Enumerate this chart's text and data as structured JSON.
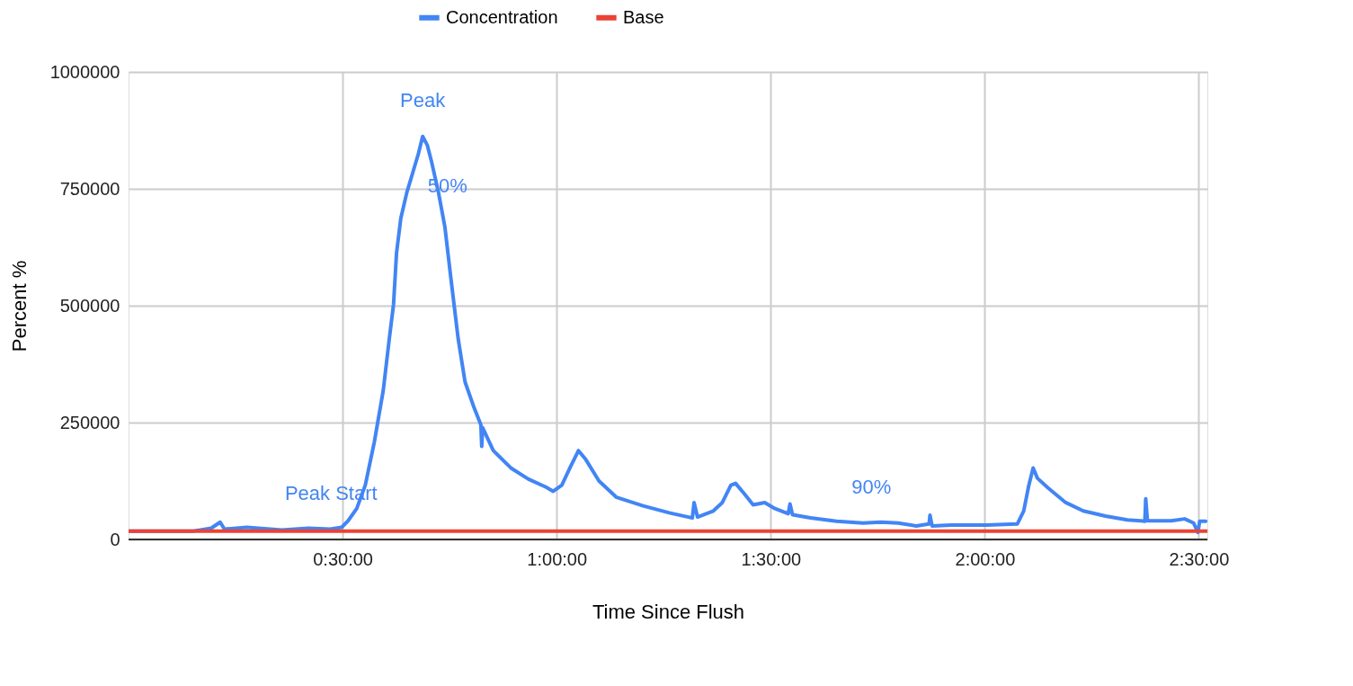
{
  "chart_data": {
    "type": "line",
    "xlabel": "Time Since Flush",
    "ylabel": "Percent %",
    "xlim": [
      0,
      2.52
    ],
    "ylim": [
      0,
      1000000
    ],
    "xticks": [
      {
        "value": 0.5,
        "label": "0:30:00"
      },
      {
        "value": 1,
        "label": "1:00:00"
      },
      {
        "value": 1.5,
        "label": "1:30:00"
      },
      {
        "value": 2,
        "label": "2:00:00"
      },
      {
        "value": 2.5,
        "label": "2:30:00"
      }
    ],
    "yticks": [
      0,
      250000,
      500000,
      750000,
      1000000
    ],
    "grid": true,
    "legend": "top",
    "line_style": "solid",
    "marker": "none",
    "annotations": [
      {
        "text": "Peak Start",
        "x": 0.473,
        "y": 22000
      },
      {
        "text": "Peak",
        "x": 0.687,
        "y": 862000
      },
      {
        "text": "50%",
        "x": 0.745,
        "y": 678000
      },
      {
        "text": "90%",
        "x": 1.735,
        "y": 35000
      }
    ],
    "series": [
      {
        "name": "Concentration",
        "color": "#4285f4",
        "x": [
          0,
          0.152,
          0.193,
          0.214,
          0.224,
          0.276,
          0.358,
          0.42,
          0.471,
          0.498,
          0.512,
          0.533,
          0.553,
          0.574,
          0.595,
          0.609,
          0.619,
          0.626,
          0.636,
          0.65,
          0.665,
          0.677,
          0.687,
          0.698,
          0.708,
          0.724,
          0.739,
          0.753,
          0.77,
          0.786,
          0.807,
          0.823,
          0.825,
          0.827,
          0.852,
          0.893,
          0.934,
          0.975,
          0.992,
          1.012,
          1.033,
          1.051,
          1.068,
          1.099,
          1.14,
          1.202,
          1.263,
          1.317,
          1.321,
          1.329,
          1.366,
          1.387,
          1.407,
          1.418,
          1.438,
          1.459,
          1.486,
          1.51,
          1.541,
          1.545,
          1.551,
          1.593,
          1.654,
          1.716,
          1.757,
          1.798,
          1.84,
          1.87,
          1.872,
          1.877,
          1.922,
          2.004,
          2.076,
          2.091,
          2.103,
          2.113,
          2.123,
          2.148,
          2.189,
          2.23,
          2.282,
          2.333,
          2.374,
          2.376,
          2.38,
          2.436,
          2.467,
          2.488,
          2.498,
          2.502,
          2.516
        ],
        "values": [
          18000,
          18000,
          24000,
          37000,
          22000,
          26000,
          20000,
          24000,
          22000,
          26000,
          39000,
          66000,
          116000,
          208000,
          319000,
          429000,
          503000,
          613000,
          687000,
          742000,
          788000,
          825000,
          862000,
          843000,
          807000,
          742000,
          668000,
          558000,
          429000,
          337000,
          282000,
          245000,
          199000,
          239000,
          190000,
          153000,
          129000,
          112000,
          103000,
          116000,
          157000,
          190000,
          171000,
          125000,
          90000,
          72000,
          57000,
          46000,
          79000,
          48000,
          61000,
          79000,
          116000,
          120000,
          98000,
          74000,
          79000,
          66000,
          55000,
          76000,
          53000,
          46000,
          39000,
          35000,
          37000,
          35000,
          29000,
          33000,
          52000,
          29000,
          31000,
          31000,
          33000,
          61000,
          116000,
          153000,
          131000,
          110000,
          79000,
          61000,
          50000,
          42000,
          39000,
          87000,
          40000,
          40000,
          44000,
          35000,
          15000,
          39000,
          39000
        ]
      },
      {
        "name": "Base",
        "color": "#ea4335",
        "x": [
          0,
          2.52
        ],
        "values": [
          18000,
          18000
        ]
      }
    ]
  }
}
